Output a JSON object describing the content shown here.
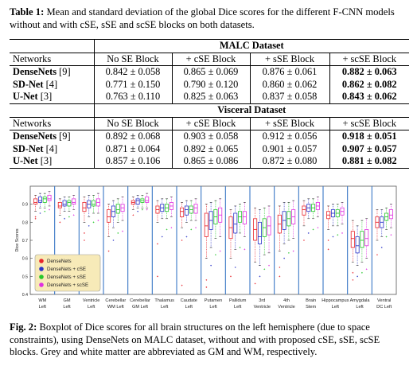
{
  "table_caption": {
    "label": "Table 1:",
    "text": "Mean and standard deviation of the global Dice scores for the different F-CNN models without and with cSE, sSE and scSE blocks on both datasets."
  },
  "table": {
    "sections": [
      {
        "dataset": "MALC Dataset",
        "headers": [
          "Networks",
          "No SE Block",
          "+ cSE Block",
          "+ sSE Block",
          "+ scSE Block"
        ],
        "rows": [
          {
            "model": "DenseNets",
            "cite": "[9]",
            "cells": [
              {
                "v": "0.842 ± 0.058",
                "b": false
              },
              {
                "v": "0.865 ± 0.069",
                "b": false
              },
              {
                "v": "0.876 ± 0.061",
                "b": false
              },
              {
                "v": "0.882 ± 0.063",
                "b": true
              }
            ]
          },
          {
            "model": "SD-Net",
            "cite": "[4]",
            "cells": [
              {
                "v": "0.771 ± 0.150",
                "b": false
              },
              {
                "v": "0.790 ± 0.120",
                "b": false
              },
              {
                "v": "0.860 ± 0.062",
                "b": false
              },
              {
                "v": "0.862 ± 0.082",
                "b": true
              }
            ]
          },
          {
            "model": "U-Net",
            "cite": "[3]",
            "cells": [
              {
                "v": "0.763 ± 0.110",
                "b": false
              },
              {
                "v": "0.825 ± 0.063",
                "b": false
              },
              {
                "v": "0.837 ± 0.058",
                "b": false
              },
              {
                "v": "0.843 ± 0.062",
                "b": true
              }
            ]
          }
        ]
      },
      {
        "dataset": "Visceral Dataset",
        "headers": [
          "Networks",
          "No SE Block",
          "+ cSE Block",
          "+ sSE Block",
          "+ scSE Block"
        ],
        "rows": [
          {
            "model": "DenseNets",
            "cite": "[9]",
            "cells": [
              {
                "v": "0.892 ± 0.068",
                "b": false
              },
              {
                "v": "0.903 ± 0.058",
                "b": false
              },
              {
                "v": "0.912 ± 0.056",
                "b": false
              },
              {
                "v": "0.918 ± 0.051",
                "b": true
              }
            ]
          },
          {
            "model": "SD-Net",
            "cite": "[4]",
            "cells": [
              {
                "v": "0.871 ± 0.064",
                "b": false
              },
              {
                "v": "0.892 ± 0.065",
                "b": false
              },
              {
                "v": "0.901 ± 0.057",
                "b": false
              },
              {
                "v": "0.907 ± 0.057",
                "b": true
              }
            ]
          },
          {
            "model": "U-Net",
            "cite": "[3]",
            "cells": [
              {
                "v": "0.857 ± 0.106",
                "b": false
              },
              {
                "v": "0.865 ± 0.086",
                "b": false
              },
              {
                "v": "0.872 ± 0.080",
                "b": false
              },
              {
                "v": "0.881 ± 0.082",
                "b": true
              }
            ]
          }
        ]
      }
    ]
  },
  "figure": {
    "ylabel": "Dice Scores",
    "yticks": [
      0.4,
      0.5,
      0.6,
      0.7,
      0.8,
      0.9
    ],
    "legend": [
      {
        "label": "DenseNets",
        "color": "#e8242b"
      },
      {
        "label": "DenseNets + cSE",
        "color": "#2b35c9"
      },
      {
        "label": "DenseNets + sSE",
        "color": "#26c72b"
      },
      {
        "label": "DenseNets + scSE",
        "color": "#e02fe0"
      }
    ],
    "categories": [
      {
        "l1": "WM",
        "l2": "Left"
      },
      {
        "l1": "GM",
        "l2": "Left"
      },
      {
        "l1": "Ventricle",
        "l2": "Left"
      },
      {
        "l1": "Cerebellar",
        "l2": "WM Left"
      },
      {
        "l1": "Cerebellar",
        "l2": "GM Left"
      },
      {
        "l1": "Thalamus",
        "l2": "Left"
      },
      {
        "l1": "Caudate",
        "l2": "Left"
      },
      {
        "l1": "Putamen",
        "l2": "Left"
      },
      {
        "l1": "Pallidum",
        "l2": "Left"
      },
      {
        "l1": "3rd",
        "l2": "Ventricle"
      },
      {
        "l1": "4th",
        "l2": "Ventricle"
      },
      {
        "l1": "Brain",
        "l2": "Stem"
      },
      {
        "l1": "Hippocampus",
        "l2": "Left"
      },
      {
        "l1": "Amygdala",
        "l2": "Left"
      },
      {
        "l1": "Ventral",
        "l2": "DC Left"
      }
    ]
  },
  "chart_data": {
    "type": "box",
    "ylabel": "Dice Scores",
    "ylim": [
      0.4,
      1.0
    ],
    "legend_position": "bottom-left",
    "categories": [
      "WM Left",
      "GM Left",
      "Ventricle Left",
      "Cerebellar WM Left",
      "Cerebellar GM Left",
      "Thalamus Left",
      "Caudate Left",
      "Putamen Left",
      "Pallidum Left",
      "3rd Ventricle",
      "4th Ventricle",
      "Brain Stem",
      "Hippocampus Left",
      "Amygdala Left",
      "Ventral DC Left"
    ],
    "series": [
      {
        "name": "DenseNets",
        "color": "#e8242b",
        "boxes": [
          [
            0.9,
            0.91,
            0.93
          ],
          [
            0.88,
            0.89,
            0.91
          ],
          [
            0.86,
            0.88,
            0.91
          ],
          [
            0.8,
            0.83,
            0.87
          ],
          [
            0.9,
            0.91,
            0.92
          ],
          [
            0.85,
            0.87,
            0.89
          ],
          [
            0.83,
            0.86,
            0.88
          ],
          [
            0.72,
            0.78,
            0.85
          ],
          [
            0.71,
            0.77,
            0.83
          ],
          [
            0.7,
            0.76,
            0.82
          ],
          [
            0.74,
            0.79,
            0.84
          ],
          [
            0.84,
            0.87,
            0.89
          ],
          [
            0.82,
            0.84,
            0.86
          ],
          [
            0.66,
            0.71,
            0.75
          ],
          [
            0.77,
            0.8,
            0.83
          ]
        ],
        "whiskers": [
          [
            0.86,
            0.95
          ],
          [
            0.84,
            0.93
          ],
          [
            0.8,
            0.94
          ],
          [
            0.72,
            0.9
          ],
          [
            0.87,
            0.94
          ],
          [
            0.8,
            0.92
          ],
          [
            0.77,
            0.91
          ],
          [
            0.6,
            0.9
          ],
          [
            0.6,
            0.87
          ],
          [
            0.58,
            0.88
          ],
          [
            0.64,
            0.89
          ],
          [
            0.78,
            0.92
          ],
          [
            0.76,
            0.89
          ],
          [
            0.58,
            0.81
          ],
          [
            0.7,
            0.87
          ]
        ],
        "outliers": [
          [
            0.83,
            0.82
          ],
          [
            0.8
          ],
          [
            0.74,
            0.7
          ],
          [
            0.64
          ],
          [
            0.84
          ],
          [
            0.68,
            0.5
          ],
          [
            0.7,
            0.45
          ],
          [
            0.48,
            0.44
          ],
          [
            0.5
          ],
          [
            0.46
          ],
          [
            0.55,
            0.5
          ],
          [
            0.7
          ],
          [
            0.7,
            0.65
          ],
          [
            0.52,
            0.48
          ],
          [
            0.62
          ]
        ]
      },
      {
        "name": "DenseNets + cSE",
        "color": "#2b35c9",
        "boxes": [
          [
            0.91,
            0.92,
            0.94
          ],
          [
            0.89,
            0.9,
            0.92
          ],
          [
            0.88,
            0.9,
            0.92
          ],
          [
            0.83,
            0.86,
            0.89
          ],
          [
            0.9,
            0.92,
            0.93
          ],
          [
            0.86,
            0.88,
            0.9
          ],
          [
            0.84,
            0.87,
            0.89
          ],
          [
            0.76,
            0.81,
            0.86
          ],
          [
            0.74,
            0.79,
            0.85
          ],
          [
            0.68,
            0.72,
            0.8
          ],
          [
            0.76,
            0.81,
            0.86
          ],
          [
            0.86,
            0.88,
            0.9
          ],
          [
            0.83,
            0.85,
            0.87
          ],
          [
            0.63,
            0.67,
            0.72
          ],
          [
            0.77,
            0.8,
            0.83
          ]
        ],
        "whiskers": [
          [
            0.88,
            0.96
          ],
          [
            0.86,
            0.94
          ],
          [
            0.83,
            0.95
          ],
          [
            0.77,
            0.92
          ],
          [
            0.88,
            0.95
          ],
          [
            0.82,
            0.93
          ],
          [
            0.8,
            0.92
          ],
          [
            0.66,
            0.91
          ],
          [
            0.65,
            0.89
          ],
          [
            0.56,
            0.87
          ],
          [
            0.68,
            0.91
          ],
          [
            0.82,
            0.93
          ],
          [
            0.78,
            0.9
          ],
          [
            0.56,
            0.78
          ],
          [
            0.72,
            0.87
          ]
        ],
        "outliers": [
          [
            0.85
          ],
          [
            0.82
          ],
          [
            0.78
          ],
          [
            0.7
          ],
          [
            0.86
          ],
          [
            0.72
          ],
          [
            0.72
          ],
          [
            0.56
          ],
          [
            0.55
          ],
          [
            0.5
          ],
          [
            0.6
          ],
          [
            0.74
          ],
          [
            0.72
          ],
          [
            0.5
          ],
          [
            0.66
          ]
        ]
      },
      {
        "name": "DenseNets + sSE",
        "color": "#26c72b",
        "boxes": [
          [
            0.91,
            0.93,
            0.94
          ],
          [
            0.89,
            0.91,
            0.92
          ],
          [
            0.89,
            0.9,
            0.92
          ],
          [
            0.85,
            0.87,
            0.9
          ],
          [
            0.91,
            0.92,
            0.93
          ],
          [
            0.86,
            0.88,
            0.9
          ],
          [
            0.85,
            0.87,
            0.89
          ],
          [
            0.79,
            0.83,
            0.87
          ],
          [
            0.8,
            0.83,
            0.86
          ],
          [
            0.72,
            0.77,
            0.82
          ],
          [
            0.78,
            0.82,
            0.86
          ],
          [
            0.86,
            0.88,
            0.9
          ],
          [
            0.83,
            0.85,
            0.87
          ],
          [
            0.66,
            0.7,
            0.75
          ],
          [
            0.81,
            0.83,
            0.85
          ]
        ],
        "whiskers": [
          [
            0.88,
            0.96
          ],
          [
            0.86,
            0.94
          ],
          [
            0.85,
            0.95
          ],
          [
            0.8,
            0.93
          ],
          [
            0.88,
            0.95
          ],
          [
            0.82,
            0.93
          ],
          [
            0.81,
            0.92
          ],
          [
            0.71,
            0.92
          ],
          [
            0.74,
            0.9
          ],
          [
            0.62,
            0.88
          ],
          [
            0.7,
            0.91
          ],
          [
            0.82,
            0.93
          ],
          [
            0.78,
            0.9
          ],
          [
            0.58,
            0.81
          ],
          [
            0.76,
            0.88
          ]
        ],
        "outliers": [
          [
            0.86
          ],
          [
            0.83
          ],
          [
            0.8
          ],
          [
            0.74
          ],
          [
            0.87
          ],
          [
            0.76
          ],
          [
            0.76
          ],
          [
            0.62
          ],
          [
            0.66
          ],
          [
            0.54
          ],
          [
            0.63
          ],
          [
            0.76
          ],
          [
            0.73
          ],
          [
            0.52
          ],
          [
            0.72
          ]
        ]
      },
      {
        "name": "DenseNets + scSE",
        "color": "#e02fe0",
        "boxes": [
          [
            0.92,
            0.93,
            0.95
          ],
          [
            0.9,
            0.91,
            0.93
          ],
          [
            0.89,
            0.91,
            0.93
          ],
          [
            0.86,
            0.88,
            0.9
          ],
          [
            0.91,
            0.92,
            0.94
          ],
          [
            0.87,
            0.89,
            0.91
          ],
          [
            0.85,
            0.88,
            0.9
          ],
          [
            0.8,
            0.84,
            0.88
          ],
          [
            0.79,
            0.83,
            0.86
          ],
          [
            0.73,
            0.78,
            0.83
          ],
          [
            0.79,
            0.83,
            0.87
          ],
          [
            0.87,
            0.89,
            0.91
          ],
          [
            0.84,
            0.86,
            0.88
          ],
          [
            0.67,
            0.71,
            0.76
          ],
          [
            0.82,
            0.84,
            0.87
          ]
        ],
        "whiskers": [
          [
            0.89,
            0.97
          ],
          [
            0.87,
            0.95
          ],
          [
            0.85,
            0.96
          ],
          [
            0.81,
            0.94
          ],
          [
            0.88,
            0.96
          ],
          [
            0.83,
            0.94
          ],
          [
            0.81,
            0.93
          ],
          [
            0.72,
            0.93
          ],
          [
            0.72,
            0.91
          ],
          [
            0.63,
            0.89
          ],
          [
            0.71,
            0.92
          ],
          [
            0.83,
            0.94
          ],
          [
            0.79,
            0.91
          ],
          [
            0.6,
            0.82
          ],
          [
            0.77,
            0.9
          ]
        ],
        "outliers": [
          [
            0.87
          ],
          [
            0.84
          ],
          [
            0.81
          ],
          [
            0.75
          ],
          [
            0.87
          ],
          [
            0.77
          ],
          [
            0.77
          ],
          [
            0.64
          ],
          [
            0.65
          ],
          [
            0.56
          ],
          [
            0.64
          ],
          [
            0.77
          ],
          [
            0.74
          ],
          [
            0.54
          ],
          [
            0.73
          ]
        ]
      }
    ]
  },
  "figure_caption": {
    "label": "Fig. 2:",
    "text": "Boxplot of Dice scores for all brain structures on the left hemisphere (due to space constraints), using DenseNets on MALC dataset, without and with proposed cSE, sSE, scSE blocks. Grey and white matter are abbreviated as GM and WM, respectively."
  }
}
